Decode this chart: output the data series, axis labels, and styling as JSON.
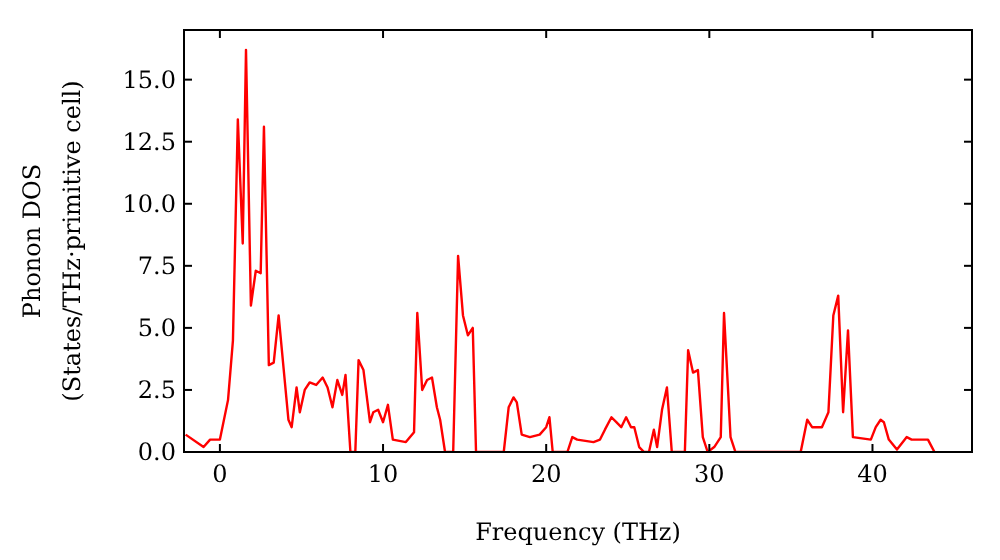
{
  "chart_data": {
    "type": "line",
    "xlabel": "Frequency (THz)",
    "ylabel": "Phonon DOS\n(States/THz·primitive cell)",
    "xlim": [
      -2.2,
      46.1
    ],
    "ylim": [
      0,
      17
    ],
    "xticks": [
      0,
      10,
      20,
      30,
      40
    ],
    "yticks": [
      {
        "value": 0,
        "label": "0.0"
      },
      {
        "value": 2.5,
        "label": "2.5"
      },
      {
        "value": 5,
        "label": "5.0"
      },
      {
        "value": 7.5,
        "label": "7.5"
      },
      {
        "value": 10,
        "label": "10.0"
      },
      {
        "value": 12.5,
        "label": "12.5"
      },
      {
        "value": 15,
        "label": "15.0"
      }
    ],
    "grid": false,
    "marker": "none",
    "line_style": "solid",
    "series": [
      {
        "color": "#ff0000",
        "x": [
          -2.1,
          -1.0,
          -0.6,
          0,
          0.5,
          0.8,
          1.1,
          1.4,
          1.6,
          1.9,
          2.2,
          2.5,
          2.7,
          3.0,
          3.3,
          3.6,
          3.9,
          4.2,
          4.4,
          4.7,
          4.9,
          5.2,
          5.5,
          5.9,
          6.3,
          6.6,
          6.9,
          7.2,
          7.5,
          7.7,
          8.0,
          8.3,
          8.5,
          8.8,
          9.2,
          9.4,
          9.7,
          10.0,
          10.3,
          10.6,
          11.4,
          11.9,
          12.1,
          12.4,
          12.7,
          13.0,
          13.3,
          13.5,
          13.8,
          14.3,
          14.6,
          14.9,
          15.2,
          15.5,
          15.7,
          17.4,
          17.7,
          18.0,
          18.2,
          18.5,
          19.0,
          19.6,
          20.0,
          20.2,
          20.4,
          21.3,
          21.6,
          21.9,
          22.9,
          23.3,
          23.6,
          24.0,
          24.3,
          24.6,
          24.9,
          25.2,
          25.4,
          25.7,
          26.0,
          26.3,
          26.6,
          26.8,
          27.1,
          27.4,
          27.7,
          28.5,
          28.7,
          29.0,
          29.3,
          29.6,
          29.9,
          30.3,
          30.7,
          30.9,
          31.3,
          31.6,
          35.6,
          36.0,
          36.3,
          36.9,
          37.3,
          37.6,
          37.9,
          38.2,
          38.5,
          38.8,
          39.9,
          40.2,
          40.5,
          40.7,
          41.0,
          41.5,
          42.1,
          42.4,
          43.4,
          43.8
        ],
        "values": [
          0.7,
          0.2,
          0.5,
          0.5,
          2.1,
          4.5,
          13.4,
          8.4,
          16.2,
          5.9,
          7.3,
          7.2,
          13.1,
          3.5,
          3.6,
          5.5,
          3.4,
          1.3,
          1.0,
          2.6,
          1.6,
          2.5,
          2.8,
          2.7,
          3.0,
          2.6,
          1.8,
          2.9,
          2.3,
          3.1,
          0,
          0,
          3.7,
          3.3,
          1.2,
          1.6,
          1.7,
          1.2,
          1.9,
          0.5,
          0.4,
          0.8,
          5.6,
          2.5,
          2.9,
          3.0,
          1.8,
          1.3,
          0,
          0,
          7.9,
          5.5,
          4.7,
          5.0,
          0,
          0,
          1.8,
          2.2,
          2.0,
          0.7,
          0.6,
          0.7,
          1.0,
          1.4,
          0,
          0,
          0.6,
          0.5,
          0.4,
          0.5,
          0.9,
          1.4,
          1.2,
          1.0,
          1.4,
          1.0,
          1.0,
          0.2,
          0,
          0,
          0.9,
          0.2,
          1.7,
          2.6,
          0,
          0,
          4.1,
          3.2,
          3.3,
          0.6,
          0,
          0.2,
          0.6,
          5.6,
          0.6,
          0,
          0,
          1.3,
          1.0,
          1.0,
          1.6,
          5.5,
          6.3,
          1.6,
          4.9,
          0.6,
          0.5,
          1.0,
          1.3,
          1.2,
          0.5,
          0.1,
          0.6,
          0.5,
          0.5,
          0
        ]
      }
    ]
  }
}
